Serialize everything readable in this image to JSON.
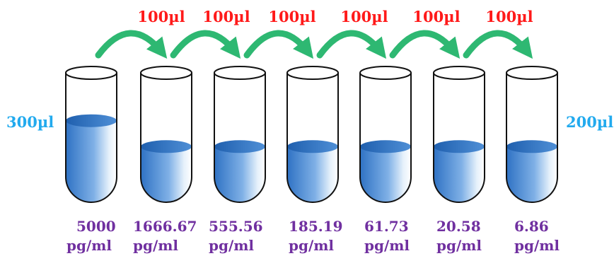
{
  "diagram": {
    "transfer_labels": [
      "100µl",
      "100µl",
      "100µl",
      "100µl",
      "100µl",
      "100µl"
    ],
    "left_volume": "300µl",
    "right_volume": "200µl",
    "tubes": [
      {
        "concentration": "5000",
        "unit": "pg/ml",
        "fill_level": 0.63
      },
      {
        "concentration": "1666.67",
        "unit": "pg/ml",
        "fill_level": 0.43
      },
      {
        "concentration": "555.56",
        "unit": "pg/ml",
        "fill_level": 0.43
      },
      {
        "concentration": "185.19",
        "unit": "pg/ml",
        "fill_level": 0.43
      },
      {
        "concentration": "61.73",
        "unit": "pg/ml",
        "fill_level": 0.43
      },
      {
        "concentration": "20.58",
        "unit": "pg/ml",
        "fill_level": 0.43
      },
      {
        "concentration": "6.86",
        "unit": "pg/ml",
        "fill_level": 0.43
      }
    ],
    "colors": {
      "transfer_text": "#ff1a1a",
      "volume_text": "#22aaee",
      "concentration_text": "#7030a0",
      "arrow": "#2eb872",
      "liquid_dark": "#2f72c4",
      "liquid_light": "#e6f1fb"
    }
  }
}
